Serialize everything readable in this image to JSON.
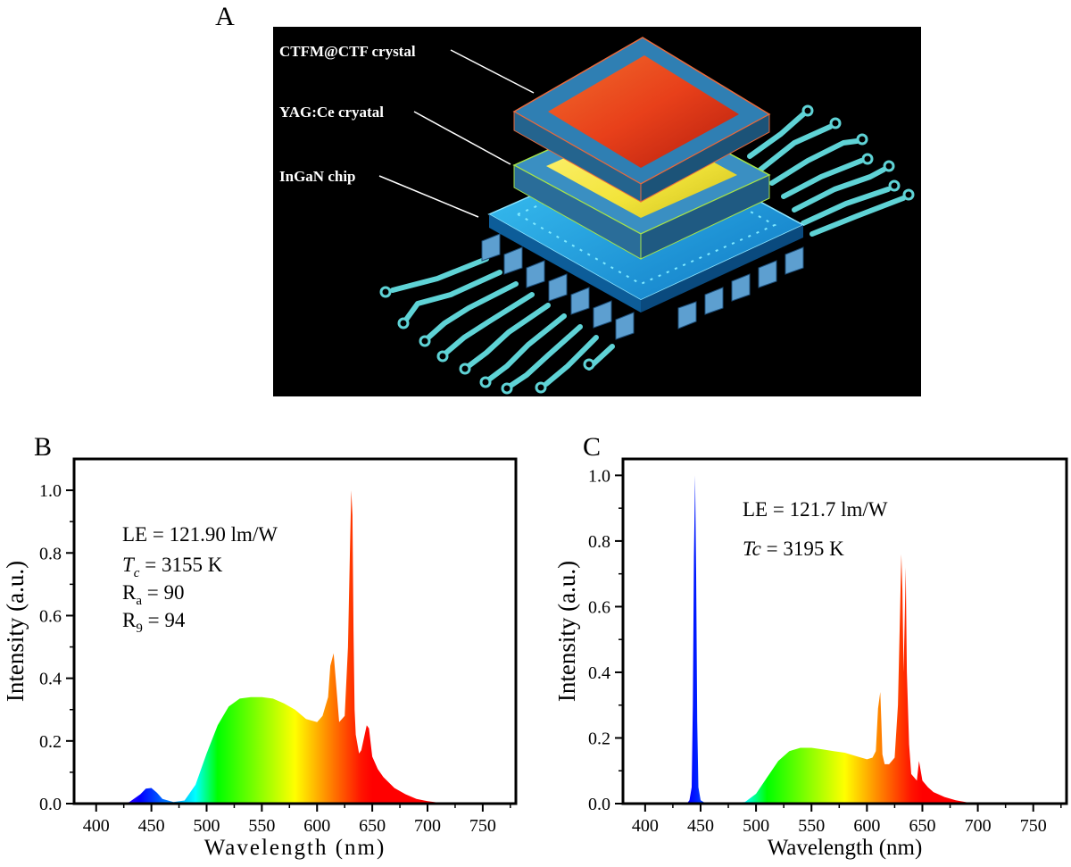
{
  "figure": {
    "panel_a": {
      "label": "A",
      "layers": {
        "top": "CTFM@CTF crystal",
        "middle": "YAG:Ce cryatal",
        "bottom": "InGaN chip"
      },
      "colors": {
        "background": "#000000",
        "top_crystal": "#e8401a",
        "middle_crystal": "#f2e43a",
        "chip": "#1aa6e8",
        "circuit": "#5fd3d6"
      }
    },
    "panel_b": {
      "label": "B",
      "annotations": {
        "le": "LE = 121.90 lm/W",
        "tc_symbol": "T",
        "tc_sub": "c",
        "tc_value": " = 3155 K",
        "ra_symbol": "R",
        "ra_sub": "a",
        "ra_value": " = 90",
        "r9_symbol": "R",
        "r9_sub": "9",
        "r9_value": " = 94"
      }
    },
    "panel_c": {
      "label": "C",
      "annotations": {
        "le": "LE = 121.7 lm/W",
        "tc_symbol": "Tc",
        "tc_value": " = 3195 K"
      }
    }
  },
  "chart_data": [
    {
      "type": "area",
      "panel": "B",
      "title": "",
      "xlabel": "Wavelength (nm)",
      "ylabel": "Intensity (a.u.)",
      "xlim": [
        380,
        780
      ],
      "ylim": [
        0,
        1.1
      ],
      "xticks": [
        "400",
        "450",
        "500",
        "550",
        "600",
        "650",
        "700",
        "750"
      ],
      "yticks": [
        "0.0",
        "0.2",
        "0.4",
        "0.6",
        "0.8",
        "1.0"
      ],
      "x": [
        420,
        430,
        440,
        445,
        450,
        455,
        460,
        470,
        480,
        490,
        500,
        510,
        520,
        530,
        540,
        550,
        560,
        570,
        580,
        590,
        600,
        605,
        610,
        612,
        615,
        618,
        620,
        625,
        628,
        630,
        631,
        632,
        633,
        634,
        635,
        638,
        640,
        645,
        647,
        650,
        655,
        660,
        670,
        680,
        690,
        700,
        710,
        720
      ],
      "series": [
        {
          "name": "spectrum",
          "values": [
            0.0,
            0.005,
            0.03,
            0.048,
            0.05,
            0.035,
            0.015,
            0.005,
            0.01,
            0.06,
            0.16,
            0.25,
            0.31,
            0.335,
            0.34,
            0.34,
            0.335,
            0.32,
            0.3,
            0.27,
            0.26,
            0.28,
            0.34,
            0.44,
            0.48,
            0.35,
            0.26,
            0.28,
            0.5,
            0.85,
            1.0,
            0.92,
            0.55,
            0.3,
            0.22,
            0.16,
            0.17,
            0.25,
            0.24,
            0.15,
            0.11,
            0.085,
            0.05,
            0.03,
            0.015,
            0.008,
            0.003,
            0.0
          ]
        }
      ]
    },
    {
      "type": "area",
      "panel": "C",
      "title": "",
      "xlabel": "Wavelength (nm)",
      "ylabel": "Intensity (a.u.)",
      "xlim": [
        380,
        780
      ],
      "ylim": [
        0,
        1.05
      ],
      "xticks": [
        "400",
        "450",
        "500",
        "550",
        "600",
        "650",
        "700",
        "750"
      ],
      "yticks": [
        "0.0",
        "0.2",
        "0.4",
        "0.6",
        "0.8",
        "1.0"
      ],
      "x": [
        430,
        438,
        440,
        442,
        443,
        444,
        445,
        446,
        447,
        448,
        450,
        455,
        470,
        490,
        500,
        510,
        520,
        530,
        540,
        550,
        560,
        570,
        580,
        590,
        600,
        605,
        608,
        610,
        612,
        613,
        614,
        616,
        620,
        625,
        628,
        630,
        631,
        632,
        633,
        634,
        635,
        636,
        638,
        640,
        645,
        647,
        650,
        655,
        660,
        670,
        680,
        690,
        700
      ],
      "series": [
        {
          "name": "spectrum",
          "values": [
            0.0,
            0.002,
            0.01,
            0.05,
            0.3,
            0.75,
            1.0,
            0.7,
            0.25,
            0.05,
            0.01,
            0.0,
            0.0,
            0.005,
            0.03,
            0.08,
            0.13,
            0.16,
            0.17,
            0.17,
            0.165,
            0.16,
            0.155,
            0.145,
            0.135,
            0.14,
            0.16,
            0.29,
            0.34,
            0.25,
            0.15,
            0.12,
            0.12,
            0.14,
            0.3,
            0.6,
            0.76,
            0.65,
            0.4,
            0.55,
            0.72,
            0.4,
            0.18,
            0.09,
            0.07,
            0.13,
            0.07,
            0.05,
            0.035,
            0.02,
            0.01,
            0.004,
            0.0
          ]
        }
      ]
    }
  ]
}
